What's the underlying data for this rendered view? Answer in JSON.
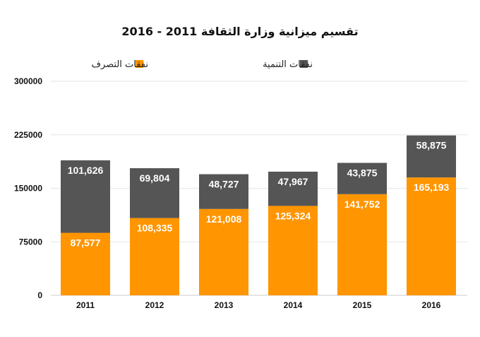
{
  "chart_data": {
    "type": "bar",
    "stacked": true,
    "title": "تقسيم ميزانية وزارة الثقافة 2011 - 2016",
    "categories": [
      "2011",
      "2012",
      "2013",
      "2014",
      "2015",
      "2016"
    ],
    "series": [
      {
        "name": "نفقات التصرف",
        "color": "#FF9500",
        "values": [
          87577,
          108335,
          121008,
          125324,
          141752,
          165193
        ],
        "labels": [
          "87,577",
          "108,335",
          "121,008",
          "125,324",
          "141,752",
          "165,193"
        ]
      },
      {
        "name": "نفقات التنمية",
        "color": "#555555",
        "values": [
          101626,
          69804,
          48727,
          47967,
          43875,
          58875
        ],
        "labels": [
          "101,626",
          "69,804",
          "48,727",
          "47,967",
          "43,875",
          "58,875"
        ]
      }
    ],
    "ylim": [
      0,
      300000
    ],
    "yticks": [
      "0",
      "75000",
      "150000",
      "225000",
      "300000"
    ],
    "grid": true,
    "legend_position": "top"
  }
}
